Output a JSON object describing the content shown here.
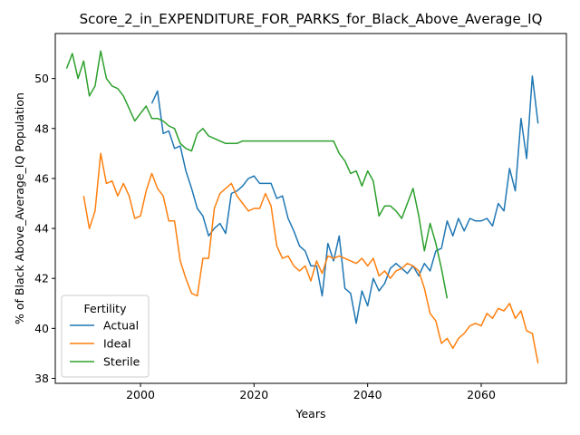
{
  "chart_data": {
    "type": "line",
    "title": "Score_2_in_EXPENDITURE_FOR_PARKS_for_Black_Above_Average_IQ",
    "xlabel": "Years",
    "ylabel": "% of Black Above_Average_IQ Population",
    "xlim": [
      1985,
      2075
    ],
    "ylim": [
      37.8,
      51.8
    ],
    "xticks": [
      2000,
      2020,
      2040,
      2060
    ],
    "yticks": [
      38,
      40,
      42,
      44,
      46,
      48,
      50
    ],
    "legend": {
      "title": "Fertility",
      "placement": "lower-left"
    },
    "grid": false,
    "series": [
      {
        "name": "Actual",
        "color": "#1f77b4",
        "x": [
          2002,
          2003,
          2004,
          2005,
          2006,
          2007,
          2008,
          2009,
          2010,
          2011,
          2012,
          2013,
          2014,
          2015,
          2016,
          2017,
          2018,
          2019,
          2020,
          2021,
          2022,
          2023,
          2024,
          2025,
          2026,
          2027,
          2028,
          2029,
          2030,
          2031,
          2032,
          2033,
          2034,
          2035,
          2036,
          2037,
          2038,
          2039,
          2040,
          2041,
          2042,
          2043,
          2044,
          2045,
          2046,
          2047,
          2048,
          2049,
          2050,
          2051,
          2052,
          2053,
          2054,
          2055,
          2056,
          2057,
          2058,
          2059,
          2060,
          2061,
          2062,
          2063,
          2064,
          2065,
          2066,
          2067,
          2068,
          2069,
          2070
        ],
        "y": [
          49.0,
          49.5,
          47.8,
          47.9,
          47.2,
          47.3,
          46.3,
          45.6,
          44.8,
          44.5,
          43.7,
          44.0,
          44.2,
          43.8,
          45.4,
          45.5,
          45.7,
          46.0,
          46.1,
          45.8,
          45.8,
          45.8,
          45.2,
          45.3,
          44.4,
          43.9,
          43.3,
          43.1,
          42.5,
          42.5,
          41.3,
          43.4,
          42.7,
          43.7,
          41.6,
          41.4,
          40.2,
          41.5,
          40.9,
          42.0,
          41.5,
          41.8,
          42.4,
          42.6,
          42.4,
          42.2,
          42.5,
          42.1,
          42.6,
          42.3,
          43.1,
          43.2,
          44.3,
          43.7,
          44.4,
          43.9,
          44.4,
          44.3,
          44.3,
          44.4,
          44.1,
          45.0,
          44.7,
          46.4,
          45.5,
          48.4,
          46.8,
          50.1,
          48.2
        ]
      },
      {
        "name": "Ideal",
        "color": "#ff7f0e",
        "x": [
          1990,
          1991,
          1992,
          1993,
          1994,
          1995,
          1996,
          1997,
          1998,
          1999,
          2000,
          2001,
          2002,
          2003,
          2004,
          2005,
          2006,
          2007,
          2008,
          2009,
          2010,
          2011,
          2012,
          2013,
          2014,
          2015,
          2016,
          2017,
          2018,
          2019,
          2020,
          2021,
          2022,
          2023,
          2024,
          2025,
          2026,
          2027,
          2028,
          2029,
          2030,
          2031,
          2032,
          2033,
          2034,
          2035,
          2036,
          2037,
          2038,
          2039,
          2040,
          2041,
          2042,
          2043,
          2044,
          2045,
          2046,
          2047,
          2048,
          2049,
          2050,
          2051,
          2052,
          2053,
          2054,
          2055,
          2056,
          2057,
          2058,
          2059,
          2060,
          2061,
          2062,
          2063,
          2064,
          2065,
          2066,
          2067,
          2068,
          2069,
          2070
        ],
        "y": [
          45.3,
          44.0,
          44.7,
          47.0,
          45.8,
          45.9,
          45.3,
          45.8,
          45.3,
          44.4,
          44.5,
          45.5,
          46.2,
          45.6,
          45.3,
          44.3,
          44.3,
          42.7,
          42.0,
          41.4,
          41.3,
          42.8,
          42.8,
          44.8,
          45.4,
          45.6,
          45.8,
          45.3,
          45.0,
          44.7,
          44.8,
          44.8,
          45.4,
          44.9,
          43.3,
          42.8,
          42.9,
          42.5,
          42.3,
          42.5,
          41.9,
          42.7,
          42.2,
          42.9,
          42.8,
          42.9,
          42.8,
          42.7,
          42.6,
          42.8,
          42.5,
          42.8,
          42.1,
          42.3,
          42.0,
          42.3,
          42.4,
          42.6,
          42.5,
          42.3,
          41.6,
          40.6,
          40.3,
          39.4,
          39.6,
          39.2,
          39.6,
          39.8,
          40.1,
          40.2,
          40.1,
          40.6,
          40.4,
          40.8,
          40.7,
          41.0,
          40.4,
          40.7,
          39.9,
          39.8,
          38.6
        ]
      },
      {
        "name": "Sterile",
        "color": "#2ca02c",
        "x": [
          1987,
          1988,
          1989,
          1990,
          1991,
          1992,
          1993,
          1994,
          1995,
          1996,
          1997,
          1998,
          1999,
          2000,
          2001,
          2002,
          2003,
          2004,
          2005,
          2006,
          2007,
          2008,
          2009,
          2010,
          2011,
          2012,
          2013,
          2014,
          2015,
          2016,
          2017,
          2018,
          2019,
          2020,
          2021,
          2022,
          2023,
          2024,
          2025,
          2026,
          2027,
          2028,
          2029,
          2030,
          2031,
          2032,
          2033,
          2034,
          2035,
          2036,
          2037,
          2038,
          2039,
          2040,
          2041,
          2042,
          2043,
          2044,
          2045,
          2046,
          2047,
          2048,
          2049,
          2050,
          2051,
          2052,
          2053,
          2054
        ],
        "y": [
          50.4,
          51.0,
          50.0,
          50.7,
          49.3,
          49.7,
          51.1,
          50.0,
          49.7,
          49.6,
          49.3,
          48.8,
          48.3,
          48.6,
          48.9,
          48.4,
          48.4,
          48.3,
          48.1,
          48.0,
          47.4,
          47.2,
          47.1,
          47.8,
          48.0,
          47.7,
          47.6,
          47.5,
          47.4,
          47.4,
          47.4,
          47.5,
          47.5,
          47.5,
          47.5,
          47.5,
          47.5,
          47.5,
          47.5,
          47.5,
          47.5,
          47.5,
          47.5,
          47.5,
          47.5,
          47.5,
          47.5,
          47.5,
          47.0,
          46.7,
          46.2,
          46.3,
          45.7,
          46.3,
          45.9,
          44.5,
          44.9,
          44.9,
          44.7,
          44.4,
          45.0,
          45.6,
          44.5,
          43.1,
          44.2,
          43.4,
          42.4,
          41.2
        ]
      }
    ]
  }
}
